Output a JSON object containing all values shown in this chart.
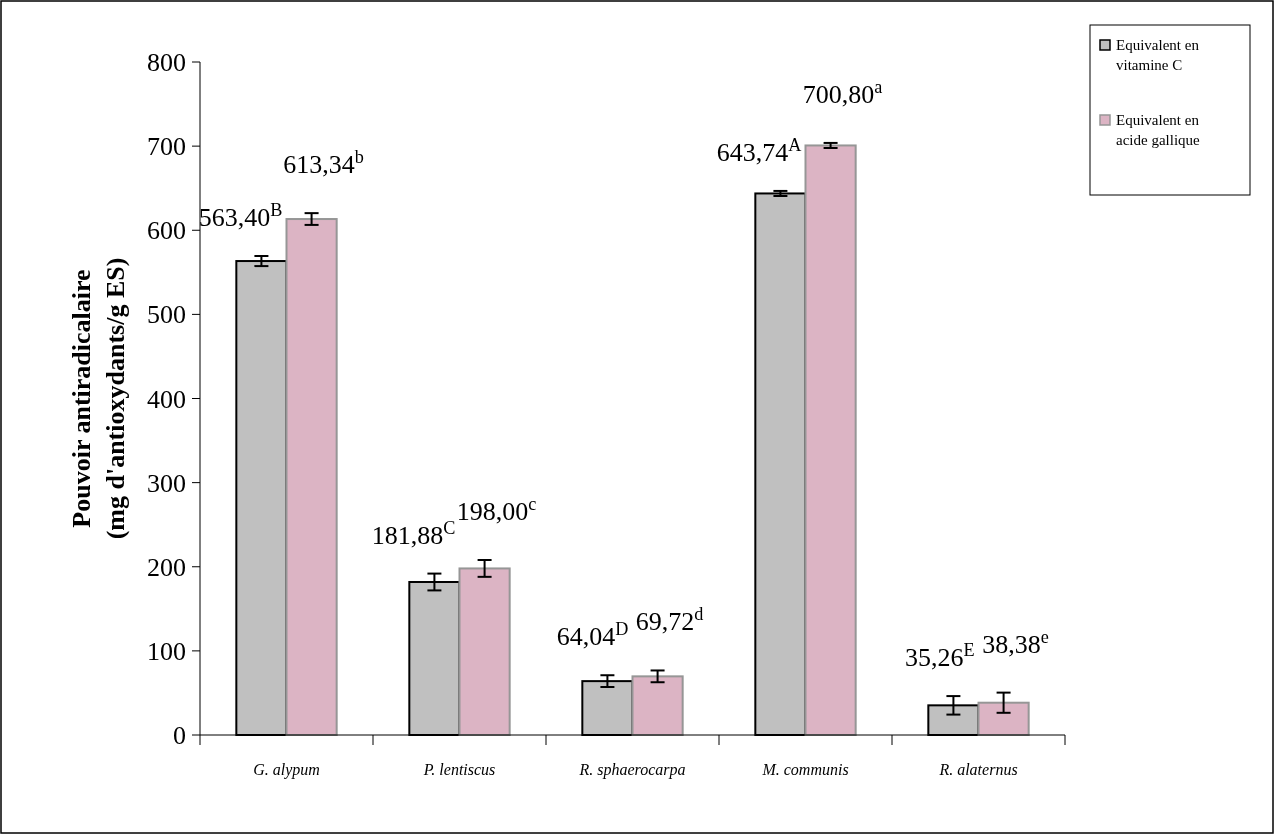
{
  "chart_data": {
    "type": "bar",
    "ylabel": "Pouvoir antiradicalaire\n(mg d'antioxydants/g ES)",
    "categories": [
      "G. alypum",
      "P. lentiscus",
      "R. sphaerocarpa",
      "M. communis",
      "R. alaternus"
    ],
    "series": [
      {
        "name": "Equivalent en vitamine C",
        "color": "#c0c0c0",
        "values": [
          563.4,
          181.88,
          64.04,
          643.74,
          35.26
        ],
        "errors": [
          6,
          10,
          7,
          3,
          11
        ],
        "value_labels": [
          "563,40$^{B}$",
          "181,88$^{C}$",
          "64,04$^{D}$",
          "643,74$^{A}$",
          "35,26$^{E}$"
        ]
      },
      {
        "name": "Equivalent en acide gallique",
        "color": "#dcb4c4",
        "values": [
          613.34,
          198.0,
          69.72,
          700.8,
          38.38
        ],
        "errors": [
          7,
          10,
          7,
          3,
          12
        ],
        "value_labels": [
          "613,34$^{b}$",
          "198,00$^{c}$",
          "69,72$^{d}$",
          "700,80$^{a}$",
          "38,38$^{e}$"
        ]
      }
    ],
    "ylim": [
      0,
      800
    ],
    "yticks": [
      0,
      100,
      200,
      300,
      400,
      500,
      600,
      700,
      800
    ],
    "legend": "top right"
  }
}
